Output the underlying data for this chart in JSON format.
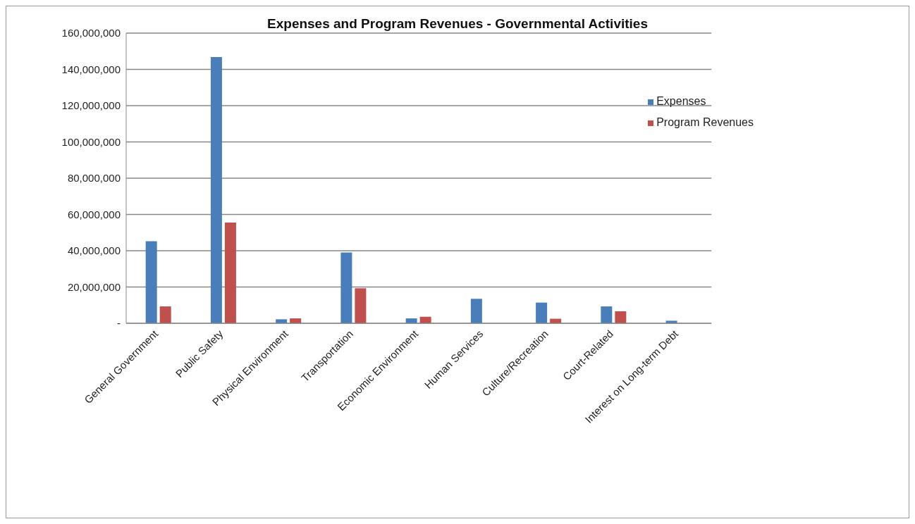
{
  "chart_data": {
    "type": "bar",
    "title": "Expenses and Program Revenues - Governmental Activities",
    "categories": [
      "General Government",
      "Public Safety",
      "Physical Environment",
      "Transportation",
      "Economic Environment",
      "Human Services",
      "Culture/Recreation",
      "Court-Related",
      "Interest on Long-term Debt"
    ],
    "series": [
      {
        "name": "Expenses",
        "color": "#4a7ebb",
        "values": [
          45200000,
          146800000,
          2200000,
          39000000,
          2700000,
          13500000,
          11400000,
          9300000,
          1400000
        ]
      },
      {
        "name": "Program Revenues",
        "color": "#c0504d",
        "values": [
          9300000,
          55500000,
          2700000,
          19300000,
          3600000,
          0,
          2500000,
          6600000,
          0
        ]
      }
    ],
    "ylim": [
      0,
      160000000
    ],
    "yticks": [
      {
        "value": 0,
        "label": "-"
      },
      {
        "value": 20000000,
        "label": "20,000,000"
      },
      {
        "value": 40000000,
        "label": "40,000,000"
      },
      {
        "value": 60000000,
        "label": "60,000,000"
      },
      {
        "value": 80000000,
        "label": "80,000,000"
      },
      {
        "value": 100000000,
        "label": "100,000,000"
      },
      {
        "value": 120000000,
        "label": "120,000,000"
      },
      {
        "value": 140000000,
        "label": "140,000,000"
      },
      {
        "value": 160000000,
        "label": "160,000,000"
      }
    ],
    "grid": "y",
    "legend": "top right"
  }
}
